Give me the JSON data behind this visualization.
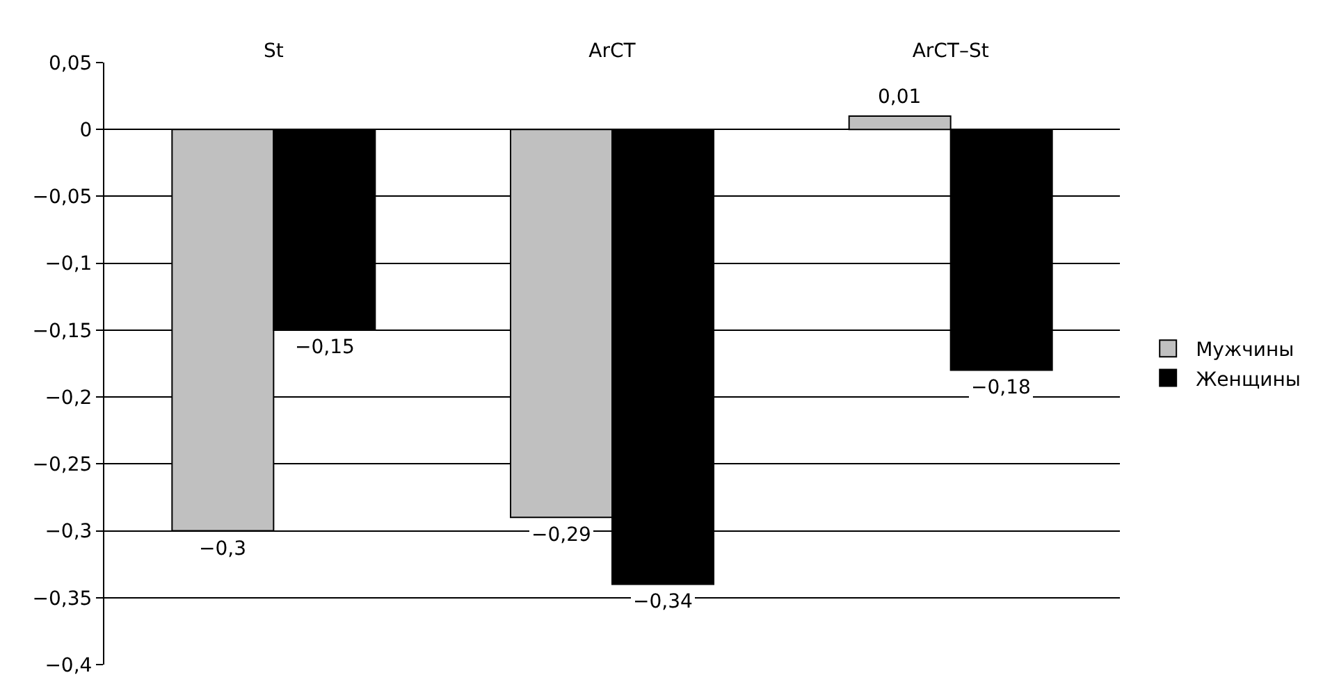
{
  "chart_data": {
    "type": "bar",
    "categories": [
      "St",
      "ArCT",
      "ArCT–St"
    ],
    "series": [
      {
        "name": "Мужчины",
        "color": "#c0c0c0",
        "values": [
          -0.3,
          -0.29,
          0.01
        ],
        "value_labels": [
          "−0,3",
          "−0,29",
          "0,01"
        ]
      },
      {
        "name": "Женщины",
        "color": "#000000",
        "values": [
          -0.15,
          -0.34,
          -0.18
        ],
        "value_labels": [
          "−0,15",
          "−0,34",
          "−0,18"
        ]
      }
    ],
    "ylim": [
      -0.4,
      0.05
    ],
    "yticks": [
      {
        "value": 0.05,
        "label": "0,05"
      },
      {
        "value": 0,
        "label": "0"
      },
      {
        "value": -0.05,
        "label": "−0,05"
      },
      {
        "value": -0.1,
        "label": "−0,1"
      },
      {
        "value": -0.15,
        "label": "−0,15"
      },
      {
        "value": -0.2,
        "label": "−0,2"
      },
      {
        "value": -0.25,
        "label": "−0,25"
      },
      {
        "value": -0.3,
        "label": "−0,3"
      },
      {
        "value": -0.35,
        "label": "−0,35"
      },
      {
        "value": -0.4,
        "label": "−0,4"
      }
    ],
    "grid": "y",
    "legend": "right"
  }
}
